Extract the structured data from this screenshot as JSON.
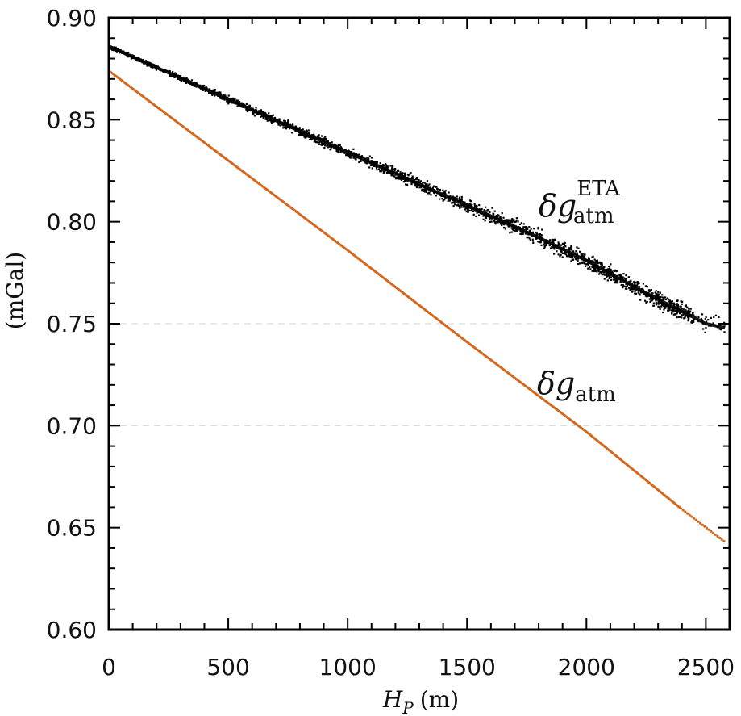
{
  "chart_data": {
    "type": "scatter",
    "title": "",
    "xlabel": "H",
    "xlabel_sub": "P",
    "xlabel_unit": "(m)",
    "ylabel": "(mGal)",
    "xlim": [
      0,
      2600
    ],
    "ylim": [
      0.6,
      0.9
    ],
    "x_ticks": [
      "0",
      "500",
      "1000",
      "1500",
      "2000",
      "2500"
    ],
    "x_tick_values": [
      0,
      500,
      1000,
      1500,
      2000,
      2500
    ],
    "y_ticks": [
      "0.60",
      "0.65",
      "0.70",
      "0.75",
      "0.80",
      "0.85",
      "0.90"
    ],
    "y_tick_values": [
      0.6,
      0.65,
      0.7,
      0.75,
      0.8,
      0.85,
      0.9
    ],
    "grid": "dashed horizontal at 0.70 and 0.75",
    "series": [
      {
        "color": "#000000",
        "style": "scatter-band",
        "x": [
          0,
          250,
          500,
          750,
          1000,
          1250,
          1500,
          1750,
          2000,
          2250,
          2500,
          2580
        ],
        "y": [
          0.886,
          0.873,
          0.86,
          0.847,
          0.834,
          0.821,
          0.808,
          0.795,
          0.781,
          0.765,
          0.75,
          0.748
        ]
      },
      {
        "color": "#d2691e",
        "style": "line",
        "x": [
          0,
          500,
          1000,
          1500,
          2000,
          2400,
          2580
        ],
        "y": [
          0.874,
          0.83,
          0.786,
          0.741,
          0.697,
          0.659,
          0.643
        ]
      }
    ],
    "annotations": [
      {
        "symbol": "δg",
        "sub": "atm",
        "sup": "ETA"
      },
      {
        "symbol": "δg",
        "sub": "atm",
        "sup": ""
      }
    ]
  }
}
